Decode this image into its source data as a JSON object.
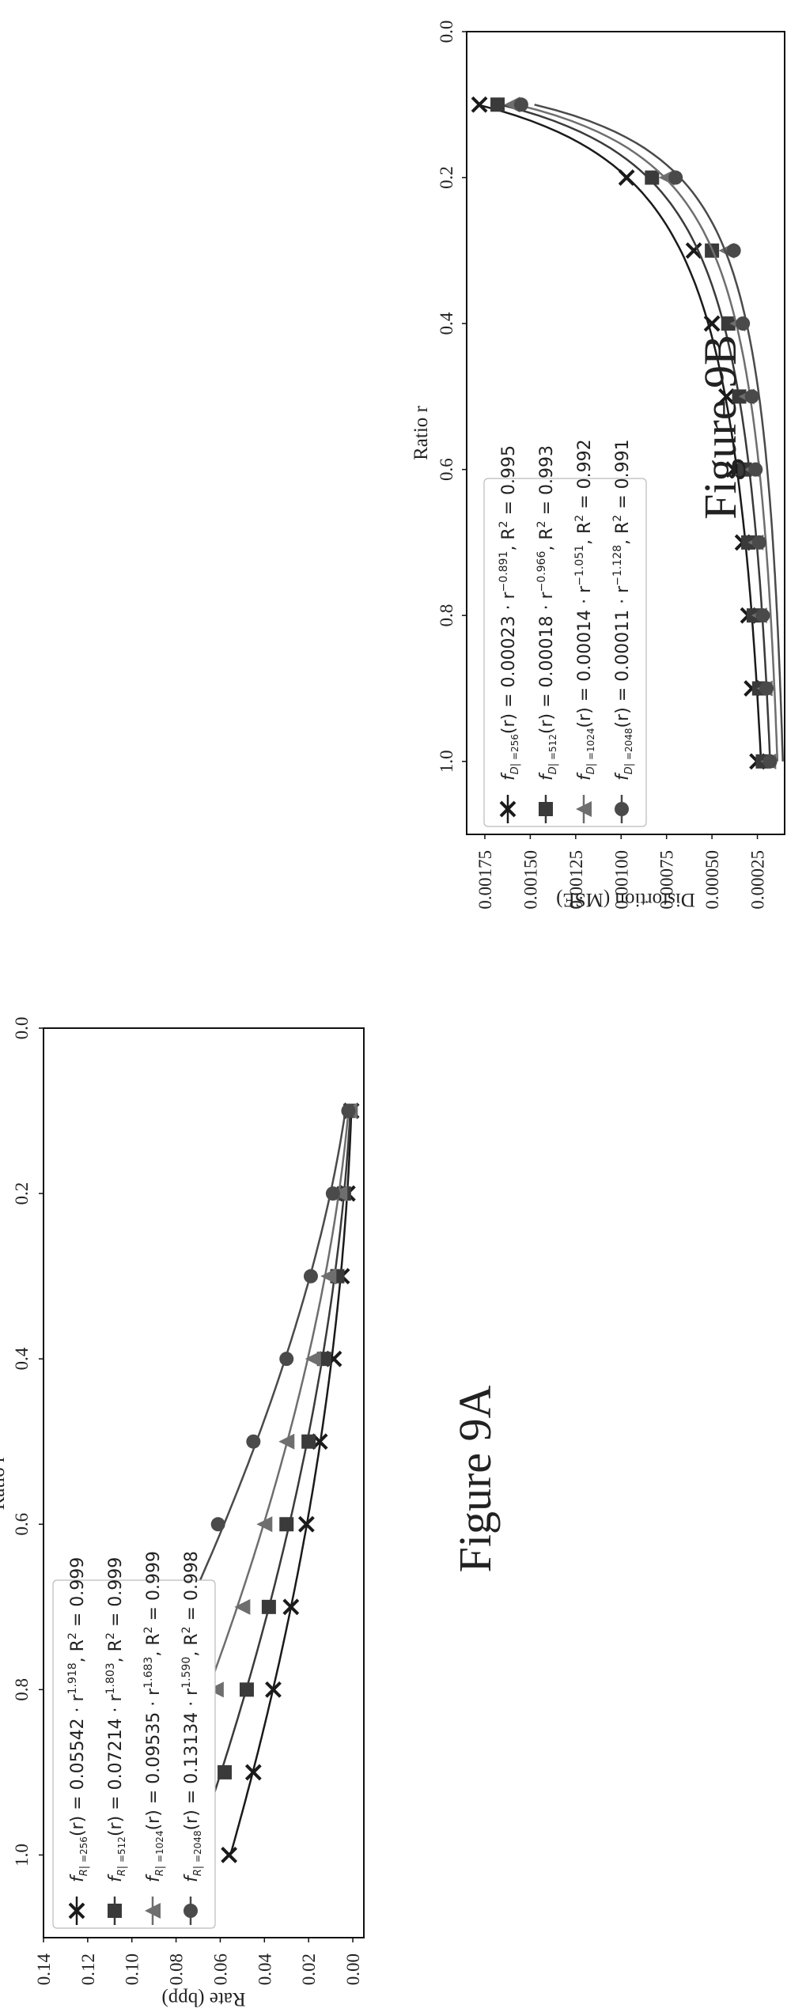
{
  "chart_data": [
    {
      "id": "9A",
      "caption": "Figure 9A",
      "type": "line",
      "xlabel": "Ratio r",
      "ylabel": "Rate (bpp)",
      "xlim": [
        0.0,
        1.1
      ],
      "ylim": [
        -0.005,
        0.14
      ],
      "xticks": [
        "0.0",
        "0.2",
        "0.4",
        "0.6",
        "0.8",
        "1.0"
      ],
      "yticks": [
        "0.00",
        "0.02",
        "0.04",
        "0.06",
        "0.08",
        "0.10",
        "0.12",
        "0.14"
      ],
      "legend_position": "upper-left",
      "x": [
        0.1,
        0.2,
        0.3,
        0.4,
        0.5,
        0.6,
        0.7,
        0.8,
        0.9,
        1.0
      ],
      "series": [
        {
          "name": "f_R|=256(r) = 0.05542 · r^1.918, R² = 0.999",
          "marker": "x",
          "color": "#1a1a1a",
          "a": 0.05542,
          "b": 1.918,
          "values": [
            0.0007,
            0.0024,
            0.005,
            0.0086,
            0.015,
            0.021,
            0.028,
            0.036,
            0.045,
            0.056
          ]
        },
        {
          "name": "f_R|=512(r) = 0.07214 · r^1.803, R² = 0.999",
          "marker": "square",
          "color": "#3a3a3a",
          "a": 0.07214,
          "b": 1.803,
          "values": [
            0.001,
            0.004,
            0.007,
            0.013,
            0.02,
            0.03,
            0.038,
            0.048,
            0.058,
            0.072
          ]
        },
        {
          "name": "f_R|=1024(r) = 0.09535 · r^1.683, R² = 0.999",
          "marker": "triangle",
          "color": "#6e6e6e",
          "a": 0.09535,
          "b": 1.683,
          "values": [
            0.0015,
            0.006,
            0.011,
            0.018,
            0.03,
            0.04,
            0.05,
            0.062,
            0.076,
            0.096
          ]
        },
        {
          "name": "f_R|=2048(r) = 0.13134 · r^1.590, R² = 0.998",
          "marker": "circle",
          "color": "#4a4a4a",
          "a": 0.13134,
          "b": 1.59,
          "values": [
            0.002,
            0.009,
            0.019,
            0.03,
            0.045,
            0.061,
            0.073,
            0.092,
            0.108,
            0.131
          ]
        }
      ],
      "legend_labels": [
        {
          "sub": "=256",
          "rest": "(r) = 0.05542 · r",
          "exp": "1.918",
          "tail": ", R",
          "r2": " = 0.999"
        },
        {
          "sub": "=512",
          "rest": "(r) = 0.07214 · r",
          "exp": "1.803",
          "tail": ", R",
          "r2": " = 0.999"
        },
        {
          "sub": "=1024",
          "rest": "(r) = 0.09535 · r",
          "exp": "1.683",
          "tail": ", R",
          "r2": " = 0.999"
        },
        {
          "sub": "=2048",
          "rest": "(r) = 0.13134 · r",
          "exp": "1.590",
          "tail": ", R",
          "r2": " = 0.998"
        }
      ]
    },
    {
      "id": "9B",
      "caption": "Figure 9B",
      "type": "line",
      "xlabel": "Ratio r",
      "ylabel": "Distortion (MSE)",
      "xlim": [
        0.0,
        1.1
      ],
      "ylim": [
        0.0001,
        0.00185
      ],
      "xticks": [
        "0.0",
        "0.2",
        "0.4",
        "0.6",
        "0.8",
        "1.0"
      ],
      "yticks": [
        "0.00025",
        "0.00050",
        "0.00075",
        "0.00100",
        "0.00125",
        "0.00150",
        "0.00175"
      ],
      "legend_position": "upper-right",
      "x": [
        0.1,
        0.2,
        0.3,
        0.4,
        0.5,
        0.6,
        0.7,
        0.8,
        0.9,
        1.0
      ],
      "series": [
        {
          "name": "f_D|=256(r) = 0.00023 · r^-0.891, R² = 0.995",
          "marker": "x",
          "color": "#1a1a1a",
          "a": 0.00023,
          "b": -0.891,
          "values": [
            0.00178,
            0.00097,
            0.0006,
            0.0005,
            0.00042,
            0.00038,
            0.00033,
            0.0003,
            0.00028,
            0.00025
          ]
        },
        {
          "name": "f_D|=512(r) = 0.00018 · r^-0.966, R² = 0.993",
          "marker": "square",
          "color": "#3a3a3a",
          "a": 0.00018,
          "b": -0.966,
          "values": [
            0.00168,
            0.00083,
            0.0005,
            0.00041,
            0.00035,
            0.00032,
            0.0003,
            0.00027,
            0.00024,
            0.00022
          ]
        },
        {
          "name": "f_D|=1024(r) = 0.00014 · r^-1.051, R² = 0.992",
          "marker": "triangle",
          "color": "#6e6e6e",
          "a": 0.00014,
          "b": -1.051,
          "values": [
            0.0016,
            0.00075,
            0.00042,
            0.00036,
            0.00031,
            0.00028,
            0.00026,
            0.00024,
            0.00021,
            0.00019
          ]
        },
        {
          "name": "f_D|=2048(r) = 0.00011 · r^-1.128, R² = 0.991",
          "marker": "circle",
          "color": "#4a4a4a",
          "a": 0.00011,
          "b": -1.128,
          "values": [
            0.00155,
            0.0007,
            0.00038,
            0.00033,
            0.00028,
            0.00026,
            0.00024,
            0.00022,
            0.0002,
            0.00018
          ]
        }
      ],
      "legend_labels": [
        {
          "sub": "=256",
          "rest": "(r) = 0.00023 · r",
          "exp": "−0.891",
          "tail": ", R",
          "r2": " = 0.995"
        },
        {
          "sub": "=512",
          "rest": "(r) = 0.00018 · r",
          "exp": "−0.966",
          "tail": ", R",
          "r2": " = 0.993"
        },
        {
          "sub": "=1024",
          "rest": "(r) = 0.00014 · r",
          "exp": "−1.051",
          "tail": ", R",
          "r2": " = 0.992"
        },
        {
          "sub": "=2048",
          "rest": "(r) = 0.00011 · r",
          "exp": "−1.128",
          "tail": ", R",
          "r2": " = 0.991"
        }
      ]
    }
  ]
}
